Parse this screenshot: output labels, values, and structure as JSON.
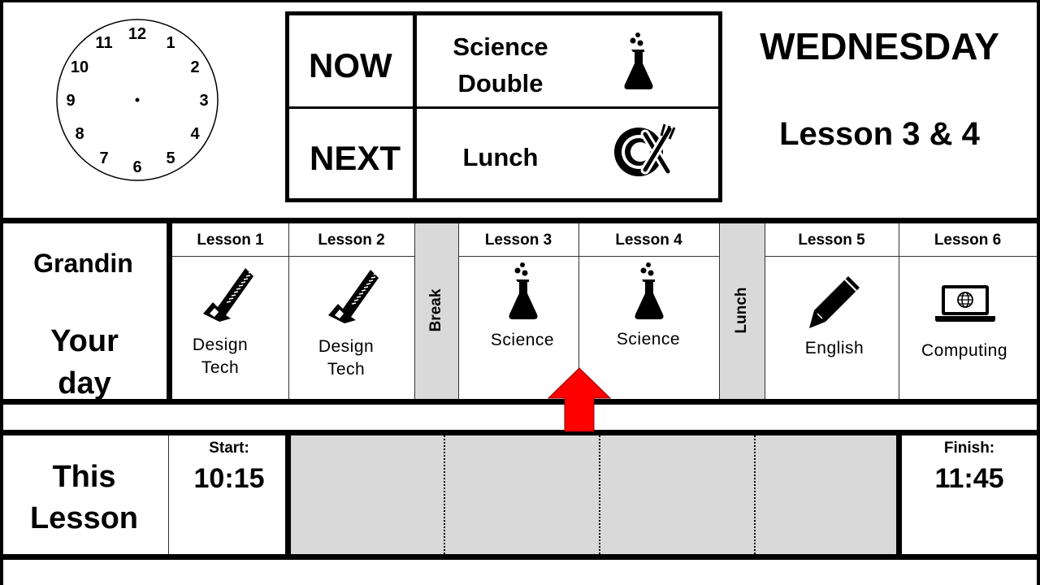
{
  "clock": {
    "numbers": [
      "12",
      "1",
      "2",
      "3",
      "4",
      "5",
      "6",
      "7",
      "8",
      "9",
      "10",
      "11"
    ]
  },
  "now_next": {
    "now_label": "NOW",
    "next_label": "NEXT",
    "now_subject_line1": "Science",
    "now_subject_line2": "Double",
    "next_subject": "Lunch",
    "now_icon": "flask-icon",
    "next_icon": "plate-cutlery-icon"
  },
  "day": {
    "name": "WEDNESDAY",
    "lessons": "Lesson 3 & 4"
  },
  "person": {
    "name": "Grandin",
    "caption_line1": "Your",
    "caption_line2": "day"
  },
  "timetable": {
    "lessons": [
      {
        "header": "Lesson 1",
        "line1": "Design",
        "line2": "Tech",
        "icon": "saw-icon"
      },
      {
        "header": "Lesson 2",
        "line1": "Design",
        "line2": "Tech",
        "icon": "saw-icon"
      },
      {
        "header": "Lesson 3",
        "line1": "Science",
        "line2": "",
        "icon": "flask-icon"
      },
      {
        "header": "Lesson 4",
        "line1": "Science",
        "line2": "",
        "icon": "flask-icon"
      },
      {
        "header": "Lesson 5",
        "line1": "English",
        "line2": "",
        "icon": "pencil-icon"
      },
      {
        "header": "Lesson 6",
        "line1": "Computing",
        "line2": "",
        "icon": "laptop-icon"
      }
    ],
    "break_label": "Break",
    "lunch_label": "Lunch",
    "current_marker": "up-arrow-icon",
    "marker_color": "#ff0000"
  },
  "this_lesson": {
    "label_line1": "This",
    "label_line2": "Lesson",
    "start_label": "Start:",
    "start_time": "10:15",
    "finish_label": "Finish:",
    "finish_time": "11:45",
    "elapsed_fraction": 0
  }
}
